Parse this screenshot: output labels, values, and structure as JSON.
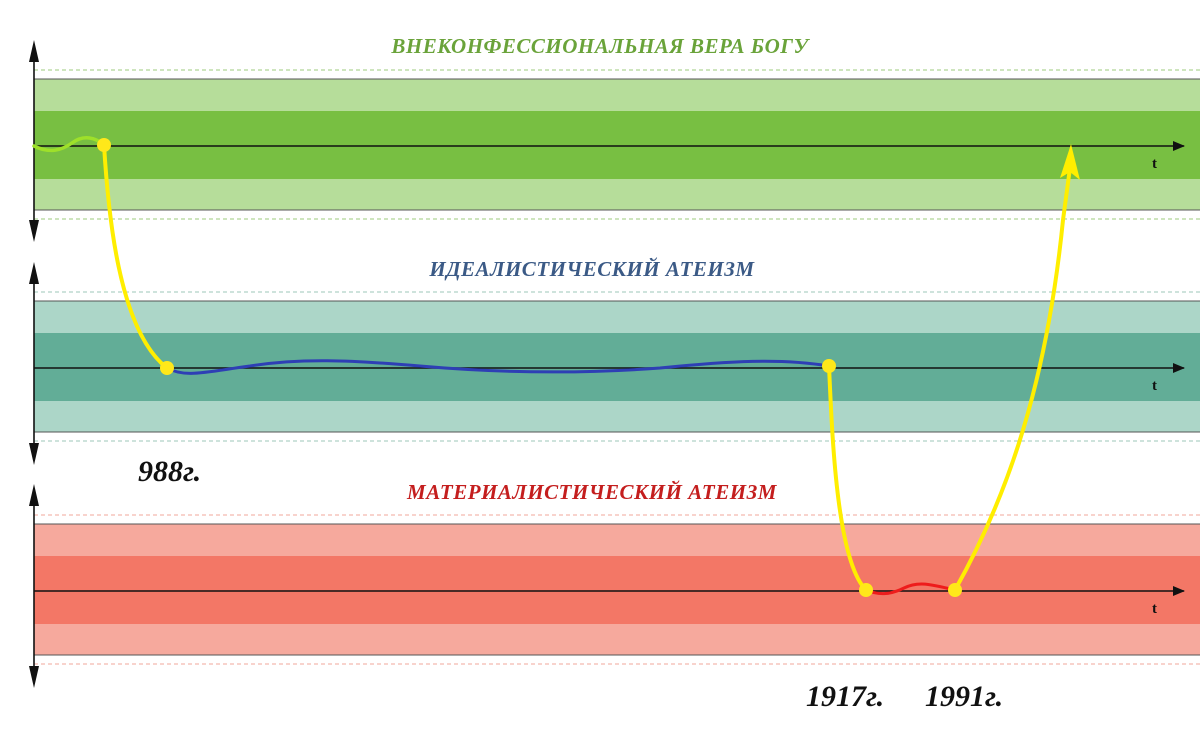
{
  "bands": {
    "faith": {
      "title": "ВНЕКОНФЕССИОНАЛЬНАЯ ВЕРА БОГУ",
      "axis_label": "t",
      "title_color": "#6aa33a",
      "outer_color": "#b6dd9a",
      "inner_color": "#78bf42"
    },
    "idealist": {
      "title": "ИДЕАЛИСТИЧЕСКИЙ АТЕИЗМ",
      "axis_label": "t",
      "title_color": "#3b5a86",
      "outer_color": "#acd6c8",
      "inner_color": "#62ad97"
    },
    "materialist": {
      "title": "МАТЕРИАЛИСТИЧЕСКИЙ АТЕИЗМ",
      "axis_label": "t",
      "title_color": "#c41e1e",
      "outer_color": "#f6a99d",
      "inner_color": "#f37766"
    }
  },
  "years": {
    "y988": "988г.",
    "y1917": "1917г.",
    "y1991": "1991г."
  },
  "colors": {
    "transition": "#ffee00",
    "point": "#ffe81a",
    "faith_path": "#9ee02a",
    "idealist_path": "#2e3fb5",
    "materialist_path": "#ee1c1c",
    "axis": "#111111"
  }
}
